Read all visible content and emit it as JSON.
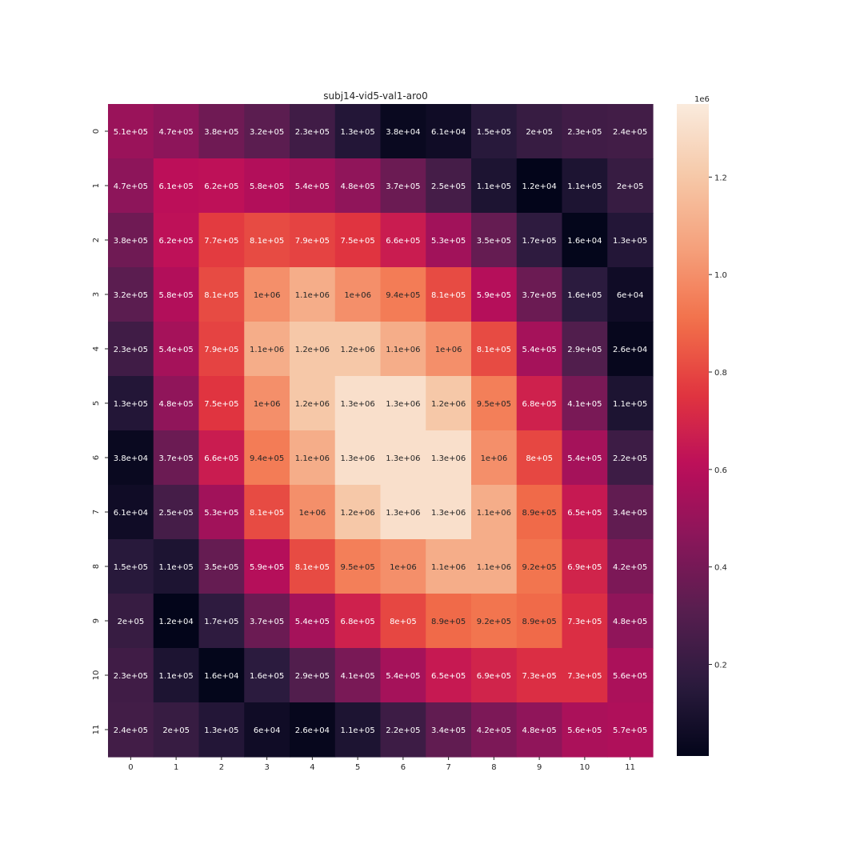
{
  "chart_data": {
    "type": "heatmap",
    "title": "subj14-vid5-val1-aro0",
    "xlabel": "",
    "ylabel": "",
    "x_tick_labels": [
      "0",
      "1",
      "2",
      "3",
      "4",
      "5",
      "6",
      "7",
      "8",
      "9",
      "10",
      "11"
    ],
    "y_tick_labels": [
      "0",
      "1",
      "2",
      "3",
      "4",
      "5",
      "6",
      "7",
      "8",
      "9",
      "10",
      "11"
    ],
    "values": [
      [
        510000,
        470000,
        380000,
        320000,
        230000,
        130000,
        38000,
        61000,
        150000,
        200000,
        230000,
        240000
      ],
      [
        470000,
        610000,
        620000,
        580000,
        540000,
        480000,
        370000,
        250000,
        110000,
        12000,
        110000,
        200000
      ],
      [
        380000,
        620000,
        770000,
        810000,
        790000,
        750000,
        660000,
        530000,
        350000,
        170000,
        16000,
        130000
      ],
      [
        320000,
        580000,
        810000,
        1000000,
        1100000,
        1000000,
        940000,
        810000,
        590000,
        370000,
        160000,
        60000
      ],
      [
        230000,
        540000,
        790000,
        1100000,
        1200000,
        1200000,
        1100000,
        1000000,
        810000,
        540000,
        290000,
        26000
      ],
      [
        130000,
        480000,
        750000,
        1000000,
        1200000,
        1300000,
        1300000,
        1200000,
        950000,
        680000,
        410000,
        110000
      ],
      [
        38000,
        370000,
        660000,
        940000,
        1100000,
        1300000,
        1300000,
        1300000,
        1000000,
        800000,
        540000,
        220000
      ],
      [
        61000,
        250000,
        530000,
        810000,
        1000000,
        1200000,
        1300000,
        1300000,
        1100000,
        890000,
        650000,
        340000
      ],
      [
        150000,
        110000,
        350000,
        590000,
        810000,
        950000,
        1000000,
        1100000,
        1100000,
        920000,
        690000,
        420000
      ],
      [
        200000,
        12000,
        170000,
        370000,
        540000,
        680000,
        800000,
        890000,
        920000,
        890000,
        730000,
        480000
      ],
      [
        230000,
        110000,
        16000,
        160000,
        290000,
        410000,
        540000,
        650000,
        690000,
        730000,
        730000,
        560000
      ],
      [
        240000,
        200000,
        130000,
        60000,
        26000,
        110000,
        220000,
        340000,
        420000,
        480000,
        560000,
        570000
      ]
    ],
    "cell_labels": [
      [
        "5.1e+05",
        "4.7e+05",
        "3.8e+05",
        "3.2e+05",
        "2.3e+05",
        "1.3e+05",
        "3.8e+04",
        "6.1e+04",
        "1.5e+05",
        "2e+05",
        "2.3e+05",
        "2.4e+05"
      ],
      [
        "4.7e+05",
        "6.1e+05",
        "6.2e+05",
        "5.8e+05",
        "5.4e+05",
        "4.8e+05",
        "3.7e+05",
        "2.5e+05",
        "1.1e+05",
        "1.2e+04",
        "1.1e+05",
        "2e+05"
      ],
      [
        "3.8e+05",
        "6.2e+05",
        "7.7e+05",
        "8.1e+05",
        "7.9e+05",
        "7.5e+05",
        "6.6e+05",
        "5.3e+05",
        "3.5e+05",
        "1.7e+05",
        "1.6e+04",
        "1.3e+05"
      ],
      [
        "3.2e+05",
        "5.8e+05",
        "8.1e+05",
        "1e+06",
        "1.1e+06",
        "1e+06",
        "9.4e+05",
        "8.1e+05",
        "5.9e+05",
        "3.7e+05",
        "1.6e+05",
        "6e+04"
      ],
      [
        "2.3e+05",
        "5.4e+05",
        "7.9e+05",
        "1.1e+06",
        "1.2e+06",
        "1.2e+06",
        "1.1e+06",
        "1e+06",
        "8.1e+05",
        "5.4e+05",
        "2.9e+05",
        "2.6e+04"
      ],
      [
        "1.3e+05",
        "4.8e+05",
        "7.5e+05",
        "1e+06",
        "1.2e+06",
        "1.3e+06",
        "1.3e+06",
        "1.2e+06",
        "9.5e+05",
        "6.8e+05",
        "4.1e+05",
        "1.1e+05"
      ],
      [
        "3.8e+04",
        "3.7e+05",
        "6.6e+05",
        "9.4e+05",
        "1.1e+06",
        "1.3e+06",
        "1.3e+06",
        "1.3e+06",
        "1e+06",
        "8e+05",
        "5.4e+05",
        "2.2e+05"
      ],
      [
        "6.1e+04",
        "2.5e+05",
        "5.3e+05",
        "8.1e+05",
        "1e+06",
        "1.2e+06",
        "1.3e+06",
        "1.3e+06",
        "1.1e+06",
        "8.9e+05",
        "6.5e+05",
        "3.4e+05"
      ],
      [
        "1.5e+05",
        "1.1e+05",
        "3.5e+05",
        "5.9e+05",
        "8.1e+05",
        "9.5e+05",
        "1e+06",
        "1.1e+06",
        "1.1e+06",
        "9.2e+05",
        "6.9e+05",
        "4.2e+05"
      ],
      [
        "2e+05",
        "1.2e+04",
        "1.7e+05",
        "3.7e+05",
        "5.4e+05",
        "6.8e+05",
        "8e+05",
        "8.9e+05",
        "9.2e+05",
        "8.9e+05",
        "7.3e+05",
        "4.8e+05"
      ],
      [
        "2.3e+05",
        "1.1e+05",
        "1.6e+04",
        "1.6e+05",
        "2.9e+05",
        "4.1e+05",
        "5.4e+05",
        "6.5e+05",
        "6.9e+05",
        "7.3e+05",
        "7.3e+05",
        "5.6e+05"
      ],
      [
        "2.4e+05",
        "2e+05",
        "1.3e+05",
        "6e+04",
        "2.6e+04",
        "1.1e+05",
        "2.2e+05",
        "3.4e+05",
        "4.2e+05",
        "4.8e+05",
        "5.6e+05",
        "5.7e+05"
      ]
    ],
    "color_range": [
      12000,
      1350000
    ],
    "colormap": "rocket",
    "colormap_stops": [
      "#03051a",
      "#2b1b3e",
      "#571e4f",
      "#89165a",
      "#bb0e5a",
      "#e1353f",
      "#f2704a",
      "#f5a07b",
      "#f6c8a8",
      "#faebdd"
    ],
    "colorbar": {
      "offset_label": "1e6",
      "ticks": [
        0.2,
        0.4,
        0.6,
        0.8,
        1.0,
        1.2
      ],
      "tick_labels": [
        "0.2",
        "0.4",
        "0.6",
        "0.8",
        "1.0",
        "1.2"
      ],
      "scale": 1000000
    },
    "grid": false,
    "legend": "colorbar-right"
  }
}
